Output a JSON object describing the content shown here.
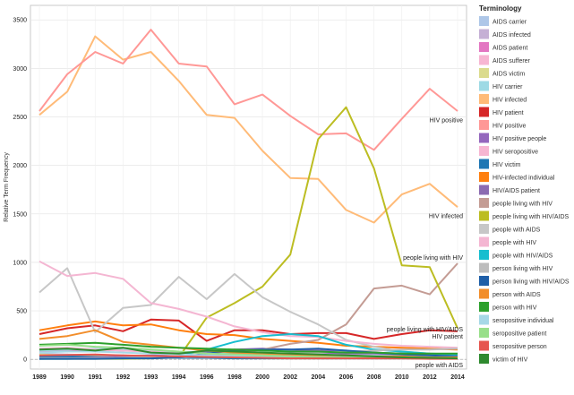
{
  "chart_data": {
    "type": "line",
    "ylabel": "Relative Term Frequency",
    "xlabel": "",
    "ylim": [
      -100,
      3650
    ],
    "yticks": [
      0,
      500,
      1000,
      1500,
      2000,
      2500,
      3000,
      3500
    ],
    "x": [
      1989,
      1990,
      1991,
      1992,
      1993,
      1994,
      1996,
      1998,
      2000,
      2002,
      2004,
      2006,
      2008,
      2010,
      2012,
      2014
    ],
    "grid": true,
    "legend": {
      "title": "Terminology",
      "placement": "right"
    },
    "series": [
      {
        "name": "AIDS carrier",
        "color": "#aec7e8",
        "values": [
          60,
          50,
          40,
          40,
          30,
          30,
          20,
          20,
          15,
          15,
          10,
          10,
          10,
          10,
          10,
          10
        ]
      },
      {
        "name": "AIDS infected",
        "color": "#c5b0d5",
        "values": [
          20,
          20,
          20,
          20,
          20,
          15,
          15,
          15,
          10,
          10,
          10,
          10,
          10,
          10,
          10,
          10
        ]
      },
      {
        "name": "AIDS patient",
        "color": "#e377c2",
        "values": [
          80,
          90,
          100,
          90,
          80,
          70,
          60,
          50,
          40,
          35,
          30,
          30,
          25,
          25,
          20,
          20
        ]
      },
      {
        "name": "AIDS sufferer",
        "color": "#f7b6d2",
        "values": [
          40,
          40,
          40,
          35,
          30,
          30,
          25,
          20,
          20,
          15,
          15,
          10,
          10,
          10,
          10,
          10
        ]
      },
      {
        "name": "AIDS victim",
        "color": "#dbdb8d",
        "values": [
          50,
          40,
          40,
          30,
          30,
          20,
          20,
          15,
          10,
          10,
          10,
          10,
          10,
          10,
          10,
          10
        ]
      },
      {
        "name": "HIV carrier",
        "color": "#9edae5",
        "values": [
          90,
          100,
          110,
          100,
          90,
          80,
          70,
          60,
          60,
          50,
          50,
          40,
          40,
          30,
          30,
          30
        ]
      },
      {
        "name": "HIV infected",
        "color": "#ffbb78",
        "values": [
          2520,
          2760,
          3330,
          3090,
          3170,
          2870,
          2520,
          2490,
          2150,
          1870,
          1860,
          1540,
          1410,
          1700,
          1810,
          1570
        ]
      },
      {
        "name": "HIV patient",
        "color": "#d62728",
        "values": [
          260,
          320,
          350,
          290,
          410,
          400,
          190,
          300,
          300,
          260,
          270,
          270,
          210,
          260,
          300,
          290
        ]
      },
      {
        "name": "HIV positive",
        "color": "#ff9896",
        "values": [
          2560,
          2940,
          3170,
          3050,
          3400,
          3050,
          3020,
          2630,
          2730,
          2510,
          2320,
          2330,
          2160,
          2480,
          2790,
          2560
        ]
      },
      {
        "name": "HIV positive people",
        "color": "#9467bd",
        "values": [
          10,
          10,
          15,
          20,
          20,
          30,
          40,
          50,
          60,
          60,
          70,
          60,
          60,
          50,
          50,
          40
        ]
      },
      {
        "name": "HIV seropositive",
        "color": "#f7b6d2",
        "values": [
          110,
          120,
          100,
          90,
          80,
          60,
          50,
          40,
          30,
          25,
          20,
          20,
          20,
          15,
          15,
          15
        ]
      },
      {
        "name": "HIV victim",
        "color": "#1f77b4",
        "values": [
          30,
          30,
          25,
          20,
          20,
          15,
          15,
          10,
          10,
          10,
          10,
          10,
          10,
          10,
          10,
          10
        ]
      },
      {
        "name": "HIV-infected individual",
        "color": "#ff7f0e",
        "values": [
          300,
          350,
          390,
          350,
          360,
          300,
          260,
          250,
          210,
          190,
          170,
          140,
          130,
          120,
          110,
          100
        ]
      },
      {
        "name": "HIV/AIDS patient",
        "color": "#8c6bb1",
        "values": [
          5,
          10,
          20,
          30,
          40,
          60,
          80,
          100,
          110,
          100,
          90,
          80,
          70,
          60,
          50,
          40
        ]
      },
      {
        "name": "people living with HIV",
        "color": "#c49c94",
        "values": [
          10,
          10,
          10,
          10,
          20,
          20,
          40,
          60,
          100,
          160,
          200,
          360,
          730,
          760,
          670,
          990
        ]
      },
      {
        "name": "people living with HIV/AIDS",
        "color": "#bcbd22",
        "values": [
          5,
          5,
          5,
          5,
          10,
          20,
          430,
          580,
          750,
          1080,
          2270,
          2600,
          1970,
          970,
          950,
          320
        ]
      },
      {
        "name": "people with AIDS",
        "color": "#c7c7c7",
        "values": [
          690,
          940,
          280,
          530,
          560,
          850,
          620,
          880,
          640,
          490,
          360,
          200,
          130,
          80,
          60,
          40
        ]
      },
      {
        "name": "people with HIV",
        "color": "#f4b6d2",
        "values": [
          1010,
          860,
          890,
          830,
          580,
          520,
          440,
          340,
          280,
          240,
          230,
          190,
          160,
          140,
          130,
          120
        ]
      },
      {
        "name": "people with HIV/AIDS",
        "color": "#17becf",
        "values": [
          5,
          5,
          10,
          10,
          20,
          30,
          100,
          180,
          240,
          260,
          240,
          150,
          100,
          80,
          60,
          50
        ]
      },
      {
        "name": "person living with HIV",
        "color": "#bdbdbd",
        "values": [
          10,
          10,
          10,
          15,
          20,
          25,
          30,
          40,
          50,
          60,
          70,
          80,
          90,
          100,
          100,
          110
        ]
      },
      {
        "name": "person living with HIV/AIDS",
        "color": "#1f5fa8",
        "values": [
          5,
          5,
          5,
          10,
          10,
          20,
          60,
          90,
          100,
          100,
          110,
          90,
          70,
          50,
          40,
          30
        ]
      },
      {
        "name": "person with AIDS",
        "color": "#f28e2b",
        "values": [
          210,
          240,
          300,
          180,
          150,
          120,
          90,
          70,
          60,
          50,
          40,
          40,
          30,
          30,
          20,
          20
        ]
      },
      {
        "name": "person with HIV",
        "color": "#2ca02c",
        "values": [
          150,
          160,
          170,
          150,
          130,
          120,
          110,
          100,
          90,
          80,
          80,
          70,
          70,
          60,
          60,
          60
        ]
      },
      {
        "name": "seropositive individual",
        "color": "#a6d8e7",
        "values": [
          70,
          80,
          80,
          70,
          60,
          50,
          40,
          30,
          30,
          20,
          20,
          20,
          15,
          15,
          10,
          10
        ]
      },
      {
        "name": "seropositive patient",
        "color": "#98df8a",
        "values": [
          140,
          150,
          130,
          120,
          100,
          80,
          60,
          50,
          40,
          30,
          25,
          20,
          20,
          15,
          15,
          10
        ]
      },
      {
        "name": "seropositive person",
        "color": "#e6554f",
        "values": [
          40,
          45,
          50,
          40,
          35,
          30,
          25,
          20,
          15,
          10,
          10,
          10,
          10,
          10,
          5,
          5
        ]
      },
      {
        "name": "victim of HIV",
        "color": "#2f8a2f",
        "values": [
          100,
          110,
          90,
          120,
          70,
          60,
          90,
          80,
          70,
          60,
          50,
          40,
          30,
          20,
          15,
          10
        ]
      }
    ],
    "annotations": [
      {
        "text": "HIV positive",
        "x": 2014,
        "y": 2470,
        "anchor": "end"
      },
      {
        "text": "HIV infected",
        "x": 2014,
        "y": 1480,
        "anchor": "end"
      },
      {
        "text": "people living with HIV",
        "x": 2014,
        "y": 1050,
        "anchor": "end"
      },
      {
        "text": "people living with HIV/AIDS",
        "x": 2014,
        "y": 310,
        "anchor": "end"
      },
      {
        "text": "HIV patient",
        "x": 2014,
        "y": 235,
        "anchor": "end"
      },
      {
        "text": "people with AIDS",
        "x": 2014,
        "y": -60,
        "anchor": "end"
      }
    ]
  }
}
